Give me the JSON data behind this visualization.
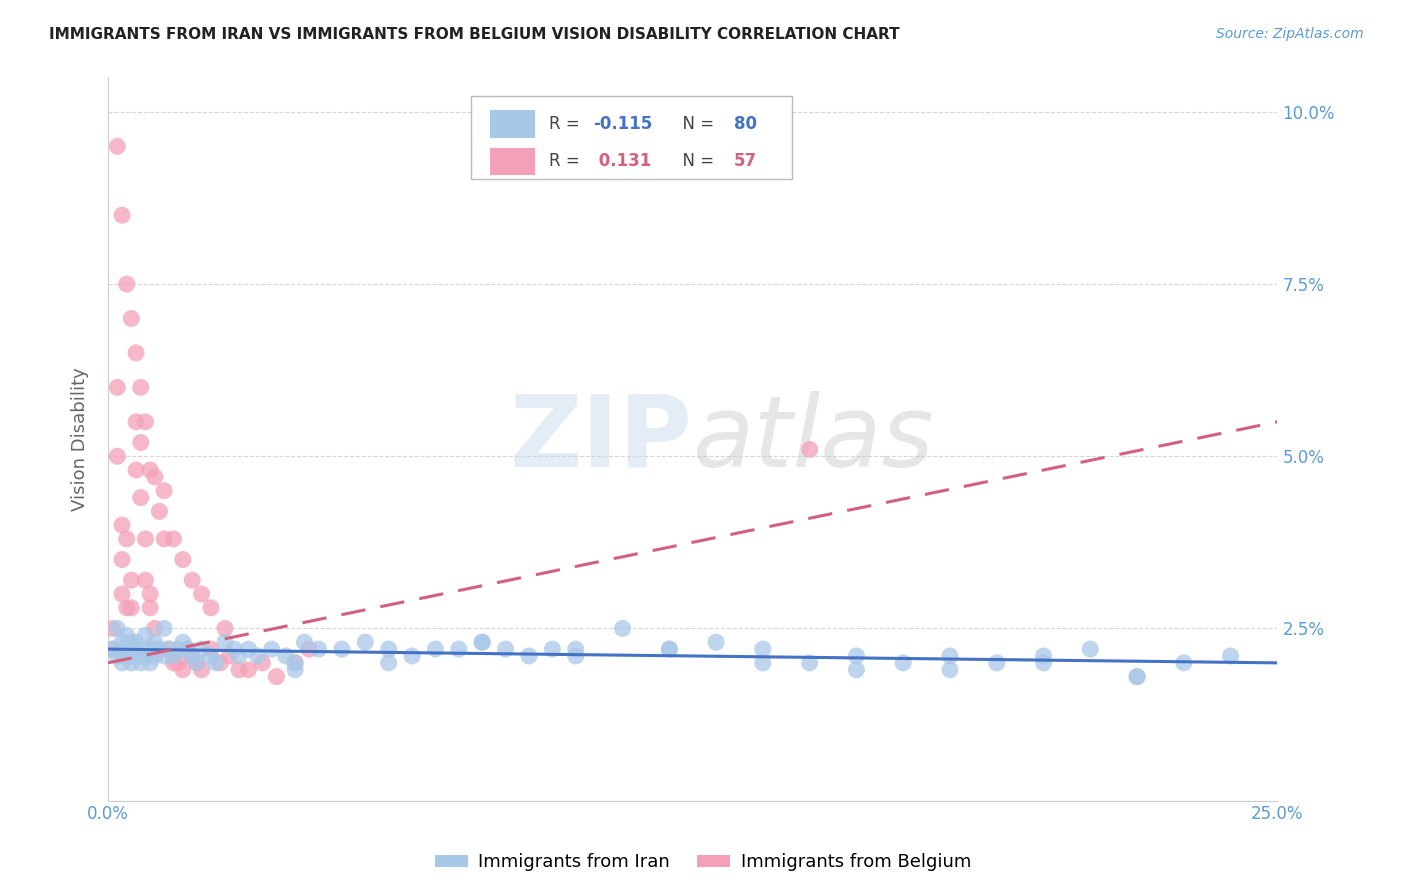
{
  "title": "IMMIGRANTS FROM IRAN VS IMMIGRANTS FROM BELGIUM VISION DISABILITY CORRELATION CHART",
  "source": "Source: ZipAtlas.com",
  "ylabel": "Vision Disability",
  "x_min": 0.0,
  "x_max": 0.25,
  "y_min": 0.0,
  "y_max": 0.105,
  "y_ticks": [
    0.0,
    0.025,
    0.05,
    0.075,
    0.1
  ],
  "y_tick_labels": [
    "",
    "2.5%",
    "5.0%",
    "7.5%",
    "10.0%"
  ],
  "x_ticks": [
    0.0,
    0.05,
    0.1,
    0.15,
    0.2,
    0.25
  ],
  "x_tick_labels": [
    "0.0%",
    "",
    "",
    "",
    "",
    "25.0%"
  ],
  "iran_color": "#a8c8e8",
  "belgium_color": "#f4a0b8",
  "iran_line_color": "#4472c4",
  "belgium_line_color": "#d46080",
  "title_color": "#222222",
  "axis_label_color": "#5b9bd5",
  "background_color": "#ffffff",
  "grid_color": "#cccccc",
  "iran_scatter_x": [
    0.001,
    0.002,
    0.002,
    0.003,
    0.003,
    0.003,
    0.004,
    0.004,
    0.004,
    0.005,
    0.005,
    0.005,
    0.006,
    0.006,
    0.007,
    0.007,
    0.008,
    0.008,
    0.009,
    0.009,
    0.01,
    0.01,
    0.011,
    0.012,
    0.012,
    0.013,
    0.014,
    0.015,
    0.016,
    0.017,
    0.018,
    0.019,
    0.02,
    0.022,
    0.023,
    0.025,
    0.027,
    0.028,
    0.03,
    0.032,
    0.035,
    0.038,
    0.04,
    0.042,
    0.045,
    0.05,
    0.055,
    0.06,
    0.065,
    0.07,
    0.075,
    0.08,
    0.085,
    0.09,
    0.095,
    0.1,
    0.11,
    0.12,
    0.13,
    0.14,
    0.15,
    0.16,
    0.17,
    0.18,
    0.19,
    0.2,
    0.21,
    0.22,
    0.23,
    0.24,
    0.04,
    0.06,
    0.08,
    0.1,
    0.12,
    0.14,
    0.16,
    0.18,
    0.2,
    0.22
  ],
  "iran_scatter_y": [
    0.022,
    0.025,
    0.021,
    0.023,
    0.022,
    0.02,
    0.024,
    0.021,
    0.022,
    0.023,
    0.02,
    0.022,
    0.021,
    0.023,
    0.022,
    0.02,
    0.024,
    0.021,
    0.022,
    0.02,
    0.023,
    0.021,
    0.022,
    0.025,
    0.021,
    0.022,
    0.021,
    0.022,
    0.023,
    0.022,
    0.021,
    0.02,
    0.022,
    0.021,
    0.02,
    0.023,
    0.022,
    0.021,
    0.022,
    0.021,
    0.022,
    0.021,
    0.02,
    0.023,
    0.022,
    0.022,
    0.023,
    0.022,
    0.021,
    0.022,
    0.022,
    0.023,
    0.022,
    0.021,
    0.022,
    0.022,
    0.025,
    0.022,
    0.023,
    0.022,
    0.02,
    0.021,
    0.02,
    0.019,
    0.02,
    0.021,
    0.022,
    0.018,
    0.02,
    0.021,
    0.019,
    0.02,
    0.023,
    0.021,
    0.022,
    0.02,
    0.019,
    0.021,
    0.02,
    0.018
  ],
  "belgium_scatter_x": [
    0.001,
    0.001,
    0.002,
    0.002,
    0.003,
    0.003,
    0.003,
    0.004,
    0.004,
    0.005,
    0.005,
    0.006,
    0.006,
    0.007,
    0.007,
    0.008,
    0.008,
    0.009,
    0.009,
    0.01,
    0.01,
    0.011,
    0.012,
    0.013,
    0.014,
    0.015,
    0.016,
    0.017,
    0.018,
    0.019,
    0.02,
    0.022,
    0.024,
    0.026,
    0.028,
    0.03,
    0.033,
    0.036,
    0.04,
    0.043,
    0.002,
    0.003,
    0.004,
    0.005,
    0.006,
    0.007,
    0.008,
    0.009,
    0.01,
    0.012,
    0.014,
    0.016,
    0.018,
    0.02,
    0.022,
    0.025,
    0.15
  ],
  "belgium_scatter_y": [
    0.022,
    0.025,
    0.06,
    0.05,
    0.04,
    0.035,
    0.03,
    0.038,
    0.028,
    0.032,
    0.028,
    0.055,
    0.048,
    0.052,
    0.044,
    0.038,
    0.032,
    0.03,
    0.028,
    0.025,
    0.022,
    0.042,
    0.038,
    0.022,
    0.02,
    0.02,
    0.019,
    0.022,
    0.021,
    0.02,
    0.019,
    0.022,
    0.02,
    0.021,
    0.019,
    0.019,
    0.02,
    0.018,
    0.02,
    0.022,
    0.095,
    0.085,
    0.075,
    0.07,
    0.065,
    0.06,
    0.055,
    0.048,
    0.047,
    0.045,
    0.038,
    0.035,
    0.032,
    0.03,
    0.028,
    0.025,
    0.051
  ],
  "iran_line_x0": 0.0,
  "iran_line_x1": 0.25,
  "iran_line_y0": 0.022,
  "iran_line_y1": 0.02,
  "belgium_line_x0": 0.0,
  "belgium_line_x1": 0.25,
  "belgium_line_y0": 0.02,
  "belgium_line_y1": 0.055
}
